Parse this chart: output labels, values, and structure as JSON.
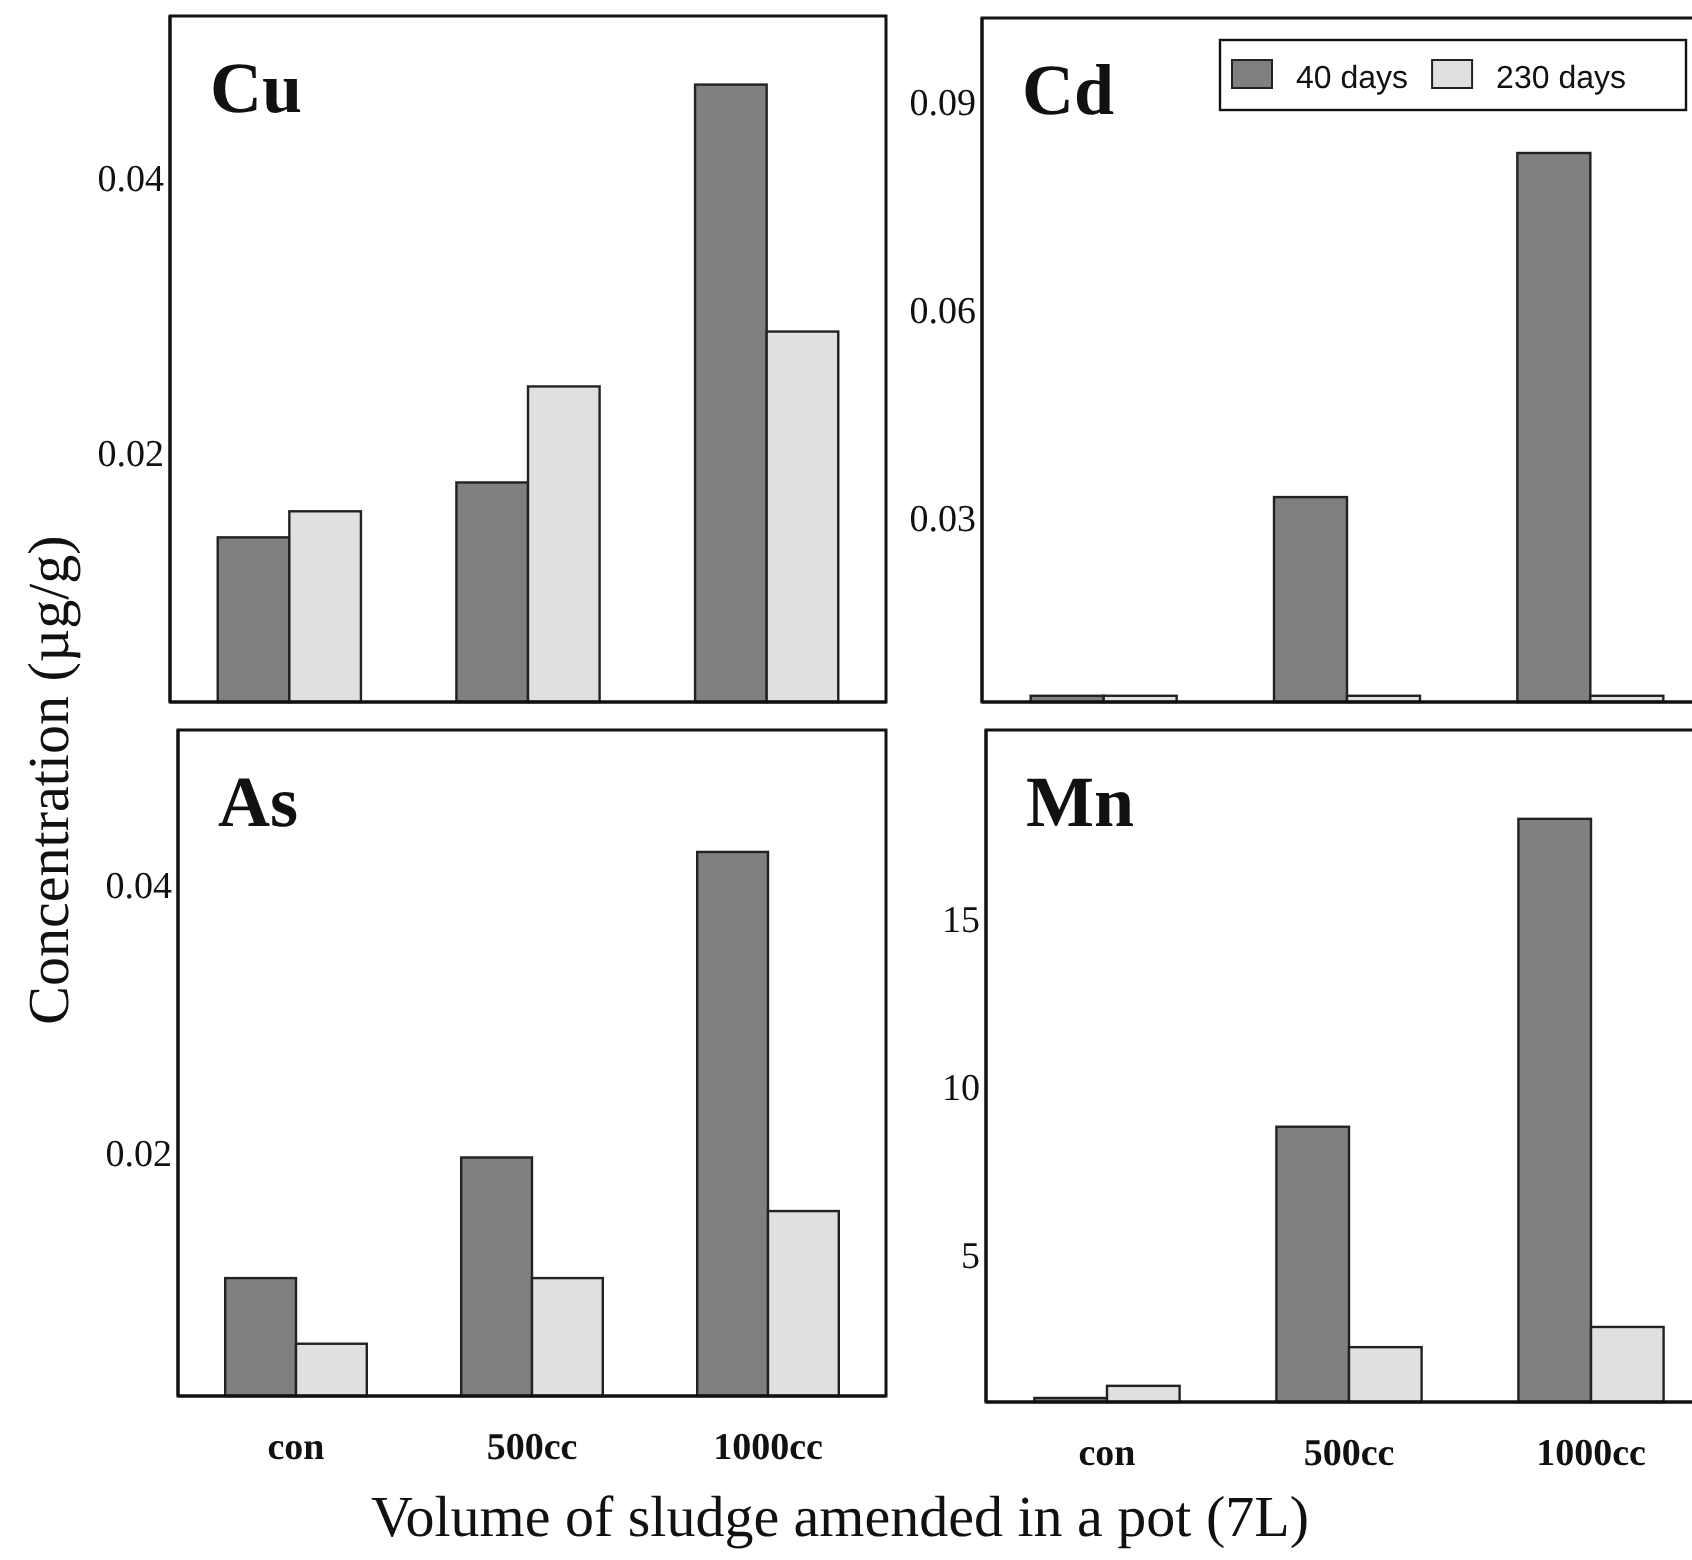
{
  "chart_data": [
    {
      "type": "bar",
      "title": "Cu",
      "ylabel": "Concentration (µg/g)",
      "categories": [
        null,
        null,
        null
      ],
      "tick_labels": "y",
      "ylim": [
        0.0019,
        0.0519
      ],
      "yticks": [
        0.02,
        0.04
      ],
      "series": [
        {
          "color": "#808080",
          "values": [
            0.0139,
            0.0179,
            0.0469
          ]
        },
        {
          "color": "#e0e0e0",
          "values": [
            0.0158,
            0.0249,
            0.0289
          ]
        }
      ]
    },
    {
      "type": "bar",
      "title": "Cd",
      "categories": [
        null,
        null,
        null
      ],
      "tick_labels": "y",
      "ylim": [
        0.0035,
        0.1023
      ],
      "yticks": [
        0.03,
        0.06,
        0.09
      ],
      "legend": "top right",
      "series": [
        {
          "name": "40 days",
          "color": "#808080",
          "values": [
            0.0044,
            0.0331,
            0.0828
          ]
        },
        {
          "name": "230 days",
          "color": "#e0e0e0",
          "values": [
            0.0044,
            0.0044,
            0.0044
          ]
        }
      ]
    },
    {
      "type": "bar",
      "title": "As",
      "xlabel": "Volume of sludge amended in a pot (7L)",
      "categories": [
        "con",
        "500cc",
        "1000cc"
      ],
      "ylim": [
        0.0019,
        0.0516
      ],
      "yticks": [
        0.02,
        0.04
      ],
      "series": [
        {
          "color": "#808080",
          "values": [
            0.0107,
            0.0197,
            0.0425
          ]
        },
        {
          "color": "#e0e0e0",
          "values": [
            0.0058,
            0.0107,
            0.0157
          ]
        }
      ]
    },
    {
      "type": "bar",
      "title": "Mn",
      "categories": [
        "con",
        "500cc",
        "1000cc"
      ],
      "ylim": [
        0.67,
        20.64
      ],
      "yticks": [
        5,
        10,
        15
      ],
      "series": [
        {
          "color": "#808080",
          "values": [
            0.79,
            8.85,
            18.0
          ]
        },
        {
          "color": "#e0e0e0",
          "values": [
            1.15,
            2.3,
            2.9
          ]
        }
      ]
    }
  ]
}
